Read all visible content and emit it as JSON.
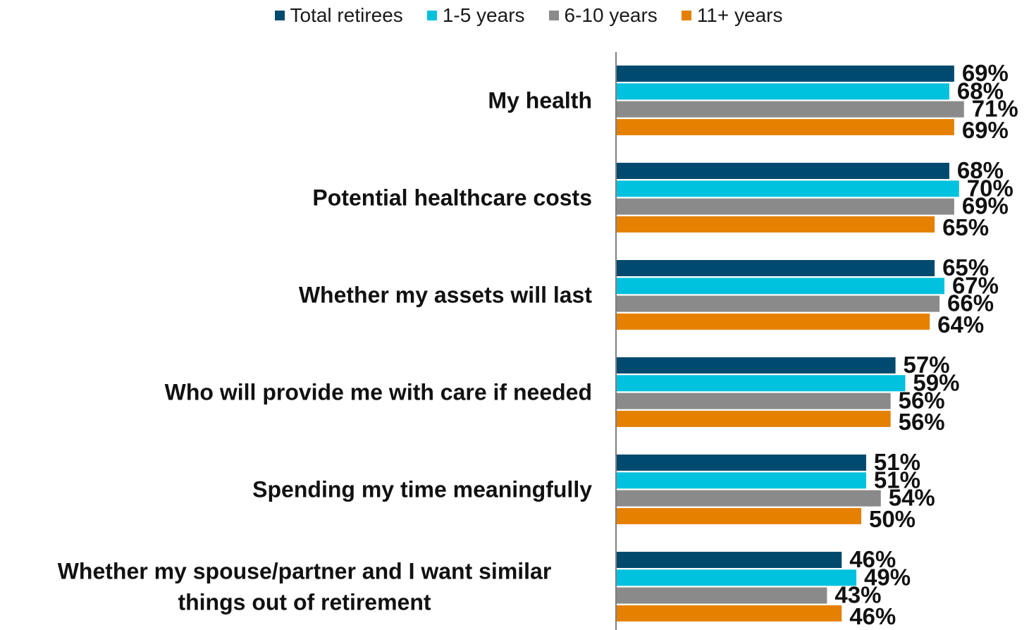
{
  "chart_data": {
    "type": "bar",
    "orientation": "horizontal",
    "categories": [
      [
        "My health"
      ],
      [
        "Potential healthcare costs"
      ],
      [
        "Whether my assets will last"
      ],
      [
        "Who will provide me with care if needed"
      ],
      [
        "Spending my time meaningfully"
      ],
      [
        "Whether my spouse/partner and I want similar",
        "things out of retirement"
      ]
    ],
    "series": [
      {
        "name": "Total retirees",
        "color": "#004a6f",
        "values": [
          69,
          68,
          65,
          57,
          51,
          46
        ]
      },
      {
        "name": "1-5 years",
        "color": "#00c1de",
        "values": [
          68,
          70,
          67,
          59,
          51,
          49
        ]
      },
      {
        "name": "6-10 years",
        "color": "#8a8a8a",
        "values": [
          71,
          69,
          66,
          56,
          54,
          43
        ]
      },
      {
        "name": "11+ years",
        "color": "#e58000",
        "values": [
          69,
          65,
          64,
          56,
          50,
          46
        ]
      }
    ],
    "value_suffix": "%",
    "xlim": [
      0,
      100
    ],
    "legend": "top-center",
    "grid": false
  }
}
